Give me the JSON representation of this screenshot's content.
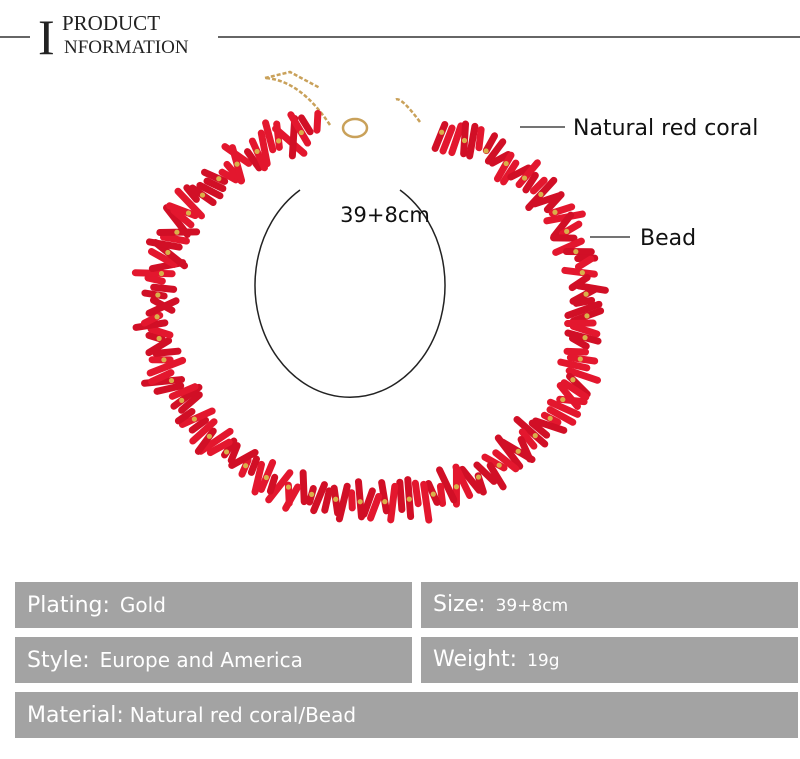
{
  "header": {
    "initial": "I",
    "line1": "PRODUCT",
    "line2": "NFORMATION"
  },
  "annotations": {
    "coral": "Natural red coral",
    "bead": "Bead",
    "size": "39+8cm"
  },
  "specs": [
    [
      {
        "label": "Plating:",
        "value": "Gold"
      },
      {
        "label": "Size:",
        "value": "39+8cm"
      }
    ],
    [
      {
        "label": "Style:",
        "value": "Europe and America"
      },
      {
        "label": "Weight:",
        "value": "19g"
      }
    ],
    [
      {
        "label": "Material:",
        "value": "Natural red coral/Bead"
      }
    ]
  ]
}
